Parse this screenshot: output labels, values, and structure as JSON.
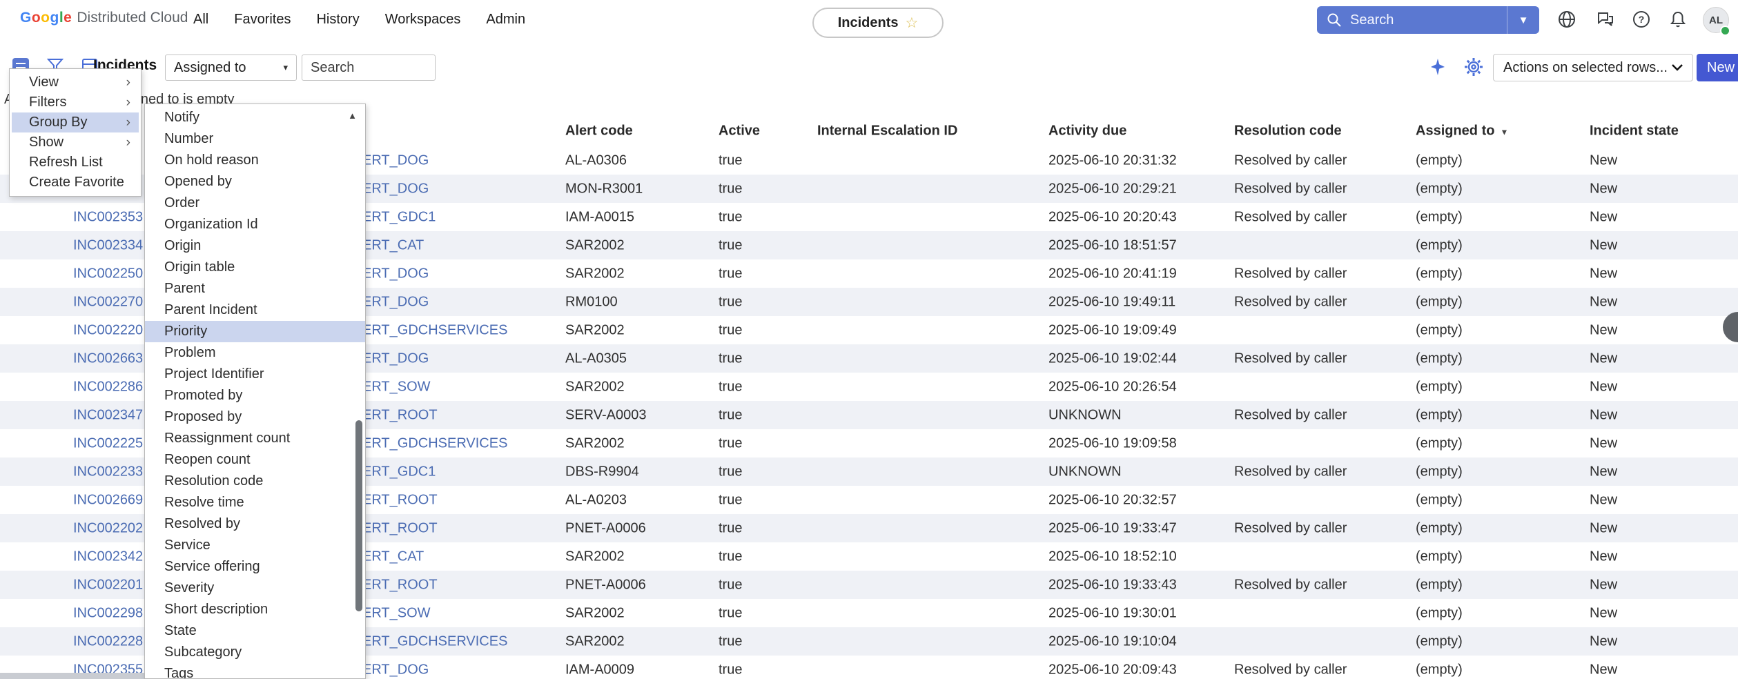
{
  "colors": {
    "accent_blue": "#4458d2",
    "search_bar_blue": "#5b78d1",
    "link_blue": "#4b6cb3",
    "menu_highlight": "#cbd5ee",
    "alt_row": "#eff1f6",
    "presence_green": "#34a853",
    "google_letters": [
      "#4285F4",
      "#EA4335",
      "#FBBC05",
      "#4285F4",
      "#34A853",
      "#EA4335"
    ]
  },
  "header": {
    "logo": {
      "google": "Google",
      "suffix": "Distributed Cloud"
    },
    "nav": [
      {
        "label": "All"
      },
      {
        "label": "Favorites"
      },
      {
        "label": "History"
      },
      {
        "label": "Workspaces"
      },
      {
        "label": "Admin"
      }
    ],
    "pill": {
      "label": "Incidents",
      "star_icon": "star-outline"
    },
    "search": {
      "label": "Search"
    },
    "avatar": {
      "initials": "AL"
    }
  },
  "toolbar": {
    "title": "Incidents",
    "filter_dropdown_value": "Assigned to",
    "search_placeholder": "Search",
    "actions_dropdown_value": "Actions on selected rows...",
    "new_button": "New"
  },
  "breadcrumb": {
    "all_label": "All",
    "condition": "Assigned to is empty"
  },
  "context_menu": {
    "highlighted_index": 2,
    "items": [
      {
        "label": "View",
        "submenu": true
      },
      {
        "label": "Filters",
        "submenu": true
      },
      {
        "label": "Group By",
        "submenu": true
      },
      {
        "label": "Show",
        "submenu": true
      },
      {
        "label": "Refresh List",
        "submenu": false
      },
      {
        "label": "Create Favorite",
        "submenu": false
      }
    ]
  },
  "group_by_submenu": {
    "highlighted_index": 10,
    "scroll_up_arrow": "▲",
    "items": [
      "Notify",
      "Number",
      "On hold reason",
      "Opened by",
      "Order",
      "Organization Id",
      "Origin",
      "Origin table",
      "Parent",
      "Parent Incident",
      "Priority",
      "Problem",
      "Project Identifier",
      "Promoted by",
      "Proposed by",
      "Reassignment count",
      "Reopen count",
      "Resolution code",
      "Resolve time",
      "Resolved by",
      "Service",
      "Service offering",
      "Severity",
      "Short description",
      "State",
      "Subcategory",
      "Tags"
    ]
  },
  "table": {
    "visible_columns": [
      "Alert code",
      "Active",
      "Internal Escalation ID",
      "Activity due",
      "Resolution code",
      "Assigned to",
      "Incident state"
    ],
    "sorted_column": "Assigned to",
    "sort_indicator": "▼",
    "rows": [
      {
        "number": "",
        "service": "ERT_DOG",
        "alert_code": "AL-A0306",
        "active": "true",
        "internal_escalation_id": "",
        "activity_due": "2025-06-10 20:31:32",
        "resolution_code": "Resolved by caller",
        "assigned_to": "(empty)",
        "incident_state": "New"
      },
      {
        "number": "",
        "service": "ERT_DOG",
        "alert_code": "MON-R3001",
        "active": "true",
        "internal_escalation_id": "",
        "activity_due": "2025-06-10 20:29:21",
        "resolution_code": "Resolved by caller",
        "assigned_to": "(empty)",
        "incident_state": "New"
      },
      {
        "number": "INC002353",
        "service": "ERT_GDC1",
        "alert_code": "IAM-A0015",
        "active": "true",
        "internal_escalation_id": "",
        "activity_due": "2025-06-10 20:20:43",
        "resolution_code": "Resolved by caller",
        "assigned_to": "(empty)",
        "incident_state": "New"
      },
      {
        "number": "INC002334",
        "service": "ERT_CAT",
        "alert_code": "SAR2002",
        "active": "true",
        "internal_escalation_id": "",
        "activity_due": "2025-06-10 18:51:57",
        "resolution_code": "",
        "assigned_to": "(empty)",
        "incident_state": "New"
      },
      {
        "number": "INC002250",
        "service": "ERT_DOG",
        "alert_code": "SAR2002",
        "active": "true",
        "internal_escalation_id": "",
        "activity_due": "2025-06-10 20:41:19",
        "resolution_code": "Resolved by caller",
        "assigned_to": "(empty)",
        "incident_state": "New"
      },
      {
        "number": "INC002270",
        "service": "ERT_DOG",
        "alert_code": "RM0100",
        "active": "true",
        "internal_escalation_id": "",
        "activity_due": "2025-06-10 19:49:11",
        "resolution_code": "Resolved by caller",
        "assigned_to": "(empty)",
        "incident_state": "New"
      },
      {
        "number": "INC002220",
        "service": "ERT_GDCHSERVICES",
        "alert_code": "SAR2002",
        "active": "true",
        "internal_escalation_id": "",
        "activity_due": "2025-06-10 19:09:49",
        "resolution_code": "",
        "assigned_to": "(empty)",
        "incident_state": "New"
      },
      {
        "number": "INC002663",
        "service": "ERT_DOG",
        "alert_code": "AL-A0305",
        "active": "true",
        "internal_escalation_id": "",
        "activity_due": "2025-06-10 19:02:44",
        "resolution_code": "Resolved by caller",
        "assigned_to": "(empty)",
        "incident_state": "New"
      },
      {
        "number": "INC002286",
        "service": "ERT_SOW",
        "alert_code": "SAR2002",
        "active": "true",
        "internal_escalation_id": "",
        "activity_due": "2025-06-10 20:26:54",
        "resolution_code": "",
        "assigned_to": "(empty)",
        "incident_state": "New"
      },
      {
        "number": "INC002347",
        "service": "ERT_ROOT",
        "alert_code": "SERV-A0003",
        "active": "true",
        "internal_escalation_id": "",
        "activity_due": "UNKNOWN",
        "resolution_code": "Resolved by caller",
        "assigned_to": "(empty)",
        "incident_state": "New"
      },
      {
        "number": "INC002225",
        "service": "ERT_GDCHSERVICES",
        "alert_code": "SAR2002",
        "active": "true",
        "internal_escalation_id": "",
        "activity_due": "2025-06-10 19:09:58",
        "resolution_code": "",
        "assigned_to": "(empty)",
        "incident_state": "New"
      },
      {
        "number": "INC002233",
        "service": "ERT_GDC1",
        "alert_code": "DBS-R9904",
        "active": "true",
        "internal_escalation_id": "",
        "activity_due": "UNKNOWN",
        "resolution_code": "Resolved by caller",
        "assigned_to": "(empty)",
        "incident_state": "New"
      },
      {
        "number": "INC002669",
        "service": "ERT_ROOT",
        "alert_code": "AL-A0203",
        "active": "true",
        "internal_escalation_id": "",
        "activity_due": "2025-06-10 20:32:57",
        "resolution_code": "",
        "assigned_to": "(empty)",
        "incident_state": "New"
      },
      {
        "number": "INC002202",
        "service": "ERT_ROOT",
        "alert_code": "PNET-A0006",
        "active": "true",
        "internal_escalation_id": "",
        "activity_due": "2025-06-10 19:33:47",
        "resolution_code": "Resolved by caller",
        "assigned_to": "(empty)",
        "incident_state": "New"
      },
      {
        "number": "INC002342",
        "service": "ERT_CAT",
        "alert_code": "SAR2002",
        "active": "true",
        "internal_escalation_id": "",
        "activity_due": "2025-06-10 18:52:10",
        "resolution_code": "",
        "assigned_to": "(empty)",
        "incident_state": "New"
      },
      {
        "number": "INC002201",
        "service": "ERT_ROOT",
        "alert_code": "PNET-A0006",
        "active": "true",
        "internal_escalation_id": "",
        "activity_due": "2025-06-10 19:33:43",
        "resolution_code": "Resolved by caller",
        "assigned_to": "(empty)",
        "incident_state": "New"
      },
      {
        "number": "INC002298",
        "service": "ERT_SOW",
        "alert_code": "SAR2002",
        "active": "true",
        "internal_escalation_id": "",
        "activity_due": "2025-06-10 19:30:01",
        "resolution_code": "",
        "assigned_to": "(empty)",
        "incident_state": "New"
      },
      {
        "number": "INC002228",
        "service": "ERT_GDCHSERVICES",
        "alert_code": "SAR2002",
        "active": "true",
        "internal_escalation_id": "",
        "activity_due": "2025-06-10 19:10:04",
        "resolution_code": "",
        "assigned_to": "(empty)",
        "incident_state": "New"
      },
      {
        "number": "INC002355",
        "service": "ERT_DOG",
        "alert_code": "IAM-A0009",
        "active": "true",
        "internal_escalation_id": "",
        "activity_due": "2025-06-10 20:09:43",
        "resolution_code": "Resolved by caller",
        "assigned_to": "(empty)",
        "incident_state": "New"
      }
    ]
  }
}
